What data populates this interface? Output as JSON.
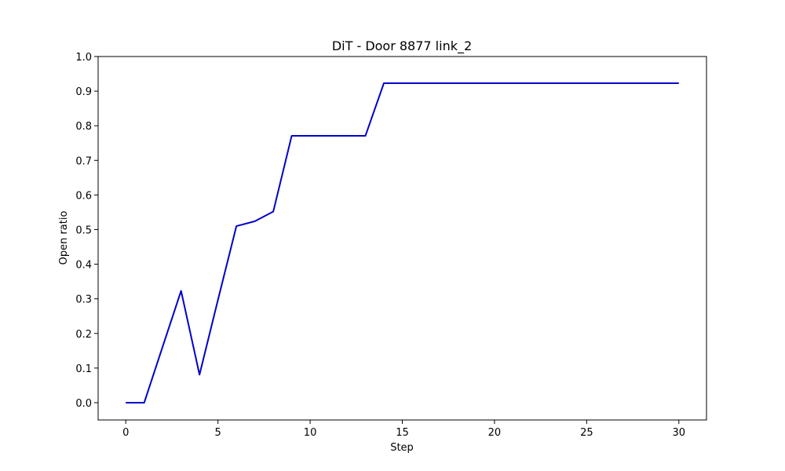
{
  "chart_data": {
    "type": "line",
    "title": "DiT - Door 8877 link_2",
    "xlabel": "Step",
    "ylabel": "Open ratio",
    "xlim": [
      -1.5,
      31.5
    ],
    "ylim": [
      -0.05,
      1.0
    ],
    "xticks": [
      0,
      5,
      10,
      15,
      20,
      25,
      30
    ],
    "yticks": [
      0.0,
      0.1,
      0.2,
      0.3,
      0.4,
      0.5,
      0.6,
      0.7,
      0.8,
      0.9,
      1.0
    ],
    "grid": false,
    "series": [
      {
        "color": "#0000cc",
        "x": [
          0,
          1,
          2,
          3,
          4,
          5,
          6,
          7,
          8,
          9,
          10,
          11,
          12,
          13,
          14,
          15,
          16,
          17,
          18,
          19,
          20,
          21,
          22,
          23,
          24,
          25,
          26,
          27,
          28,
          29,
          30
        ],
        "y": [
          0.0,
          0.0,
          0.162,
          0.323,
          0.081,
          0.297,
          0.51,
          0.524,
          0.552,
          0.771,
          0.771,
          0.771,
          0.771,
          0.771,
          0.923,
          0.923,
          0.923,
          0.923,
          0.923,
          0.923,
          0.923,
          0.923,
          0.923,
          0.923,
          0.923,
          0.923,
          0.923,
          0.923,
          0.923,
          0.923,
          0.923
        ]
      }
    ]
  }
}
